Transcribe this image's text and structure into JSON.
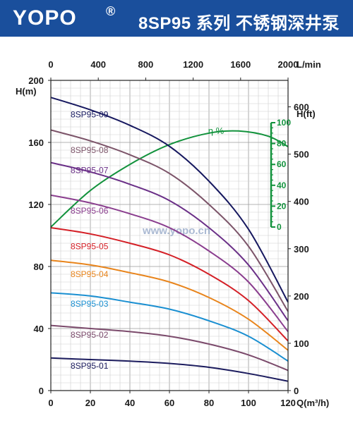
{
  "header": {
    "brand": "YOPO",
    "brand_mark": "®",
    "title": "8SP95  系列 不锈钢深井泵",
    "background_color": "#1a4f9c"
  },
  "chart_data": {
    "type": "line",
    "watermark": "www.yopo.cn",
    "axes": {
      "x_bottom": {
        "unit_label": "Q(m³/h)",
        "range": [
          0,
          120
        ],
        "ticks": [
          0,
          20,
          40,
          60,
          80,
          100,
          120
        ]
      },
      "x_top": {
        "unit_label": "L/min",
        "range": [
          0,
          2000
        ],
        "ticks": [
          0,
          400,
          800,
          1200,
          1600,
          2000
        ]
      },
      "y_left": {
        "unit_label": "H(m)",
        "range": [
          0,
          200
        ],
        "ticks": [
          0,
          40,
          80,
          120,
          160,
          200
        ]
      },
      "y_right": {
        "unit_label": "H(ft)",
        "range": [
          0,
          656
        ],
        "ticks": [
          0,
          100,
          200,
          300,
          400,
          500,
          600
        ]
      },
      "efficiency": {
        "unit_label": "η %",
        "range": [
          0,
          100
        ],
        "ticks": [
          0,
          20,
          40,
          60,
          80,
          100
        ],
        "color": "#12923c"
      }
    },
    "grid": true,
    "series": [
      {
        "name": "8SP95-01",
        "color": "#1c1c5e",
        "label_at": [
          10,
          16
        ],
        "x": [
          0,
          20,
          40,
          60,
          80,
          100,
          120
        ],
        "y": [
          21,
          20,
          19,
          17.5,
          15,
          11,
          6
        ]
      },
      {
        "name": "8SP95-02",
        "color": "#7b4a6b",
        "label_at": [
          10,
          36
        ],
        "x": [
          0,
          20,
          40,
          60,
          80,
          100,
          120
        ],
        "y": [
          42,
          40,
          38,
          35,
          30,
          23,
          13
        ]
      },
      {
        "name": "8SP95-03",
        "color": "#1a8fd1",
        "label_at": [
          10,
          56
        ],
        "x": [
          0,
          20,
          40,
          60,
          80,
          100,
          120
        ],
        "y": [
          63,
          61,
          57,
          52.5,
          45,
          35,
          19
        ]
      },
      {
        "name": "8SP95-04",
        "color": "#e8841b",
        "label_at": [
          10,
          75
        ],
        "x": [
          0,
          20,
          40,
          60,
          80,
          100,
          120
        ],
        "y": [
          84,
          81,
          76,
          70,
          60,
          46,
          26
        ]
      },
      {
        "name": "8SP95-05",
        "color": "#d41f26",
        "label_at": [
          10,
          93
        ],
        "x": [
          0,
          20,
          40,
          60,
          80,
          100,
          120
        ],
        "y": [
          105,
          101,
          95,
          87.5,
          75,
          58,
          32
        ]
      },
      {
        "name": "8SP95-06",
        "color": "#8a3d8e",
        "label_at": [
          10,
          116
        ],
        "x": [
          0,
          20,
          40,
          60,
          80,
          100,
          120
        ],
        "y": [
          126,
          121,
          114,
          105,
          90,
          70,
          38
        ]
      },
      {
        "name": "8SP95-07",
        "color": "#6a2f87",
        "label_at": [
          10,
          142
        ],
        "x": [
          0,
          20,
          40,
          60,
          80,
          100,
          120
        ],
        "y": [
          147,
          141,
          133,
          122.5,
          105,
          81,
          45
        ]
      },
      {
        "name": "8SP95-08",
        "color": "#7c5469",
        "label_at": [
          10,
          155
        ],
        "x": [
          0,
          20,
          40,
          60,
          80,
          100,
          120
        ],
        "y": [
          168,
          161,
          152,
          140,
          120,
          93,
          51
        ]
      },
      {
        "name": "8SP95-09",
        "color": "#16185f",
        "label_at": [
          10,
          178
        ],
        "x": [
          0,
          20,
          40,
          60,
          80,
          100,
          120
        ],
        "y": [
          189,
          181,
          171,
          157.5,
          135,
          104,
          57
        ]
      }
    ],
    "efficiency_curve": {
      "name": "η %",
      "color": "#12923c",
      "x": [
        0,
        20,
        40,
        60,
        80,
        95,
        110,
        120
      ],
      "y": [
        0,
        35,
        60,
        79,
        90,
        92,
        87,
        77
      ]
    }
  }
}
